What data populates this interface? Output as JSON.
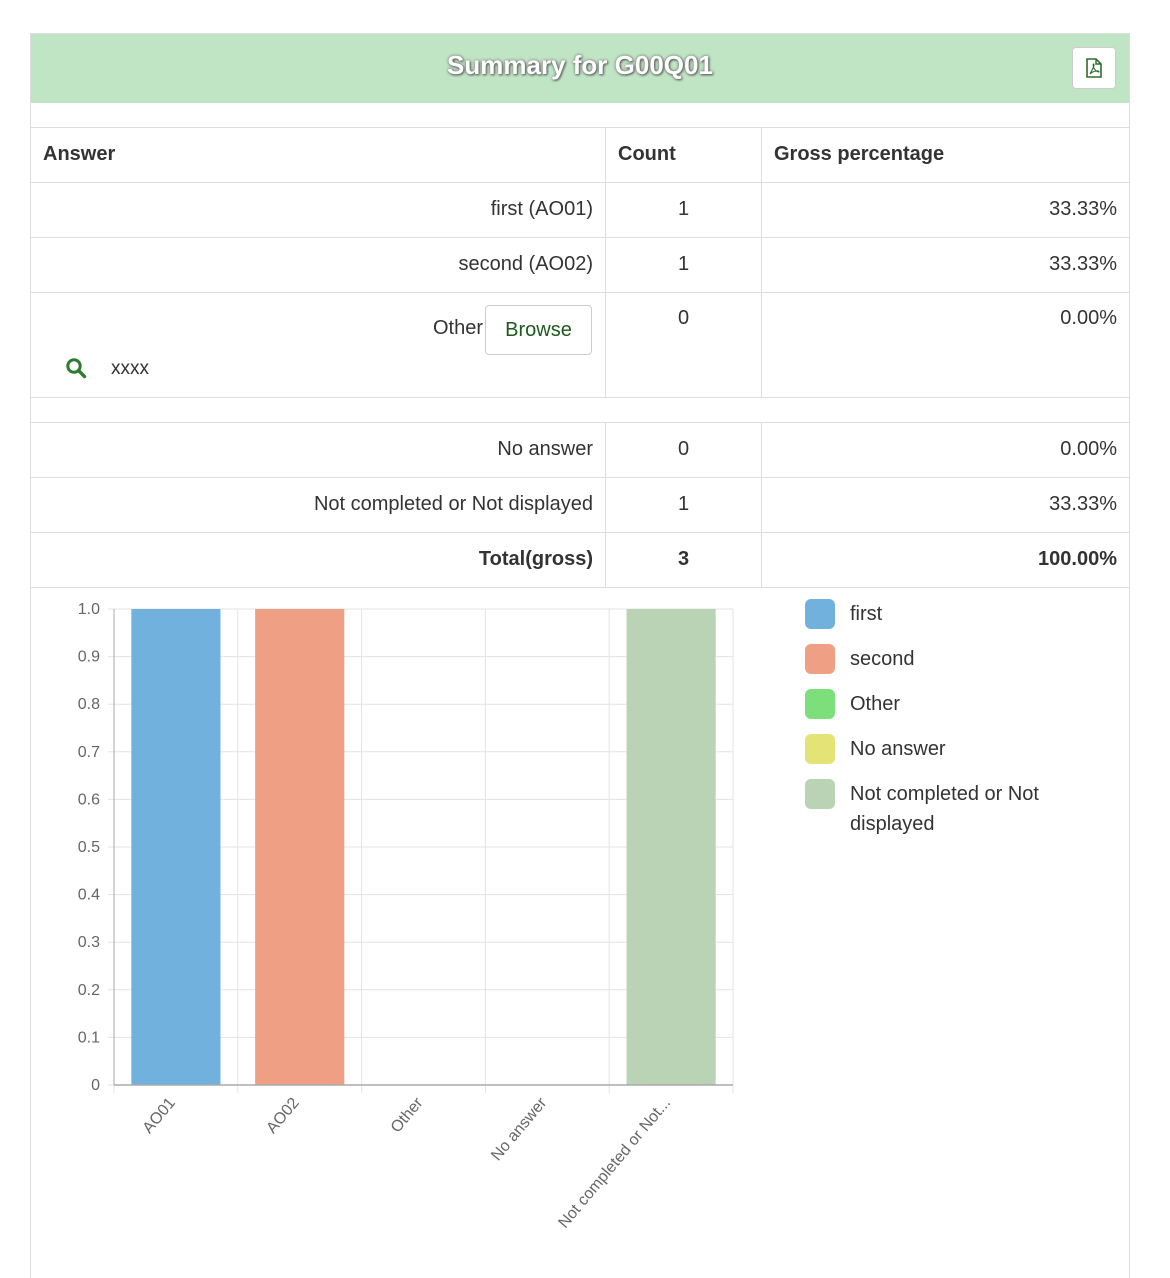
{
  "header": {
    "title": "Summary for G00Q01",
    "export_icon": "pdf-file-icon"
  },
  "table": {
    "columns": [
      "Answer",
      "Count",
      "Gross percentage"
    ],
    "rows": [
      {
        "answer": "first (AO01)",
        "count": "1",
        "percent": "33.33%"
      },
      {
        "answer": "second (AO02)",
        "count": "1",
        "percent": "33.33%"
      },
      {
        "answer": "Other",
        "count": "0",
        "percent": "0.00%",
        "browse_label": "Browse",
        "other_text": "xxxx"
      },
      {
        "answer": "No answer",
        "count": "0",
        "percent": "0.00%"
      },
      {
        "answer": "Not completed or Not displayed",
        "count": "1",
        "percent": "33.33%"
      },
      {
        "answer": "Total(gross)",
        "count": "3",
        "percent": "100.00%"
      }
    ]
  },
  "chart_data": {
    "type": "bar",
    "categories": [
      "AO01",
      "AO02",
      "Other",
      "No answer",
      "Not completed or Not..."
    ],
    "values": [
      1,
      1,
      0,
      0,
      1
    ],
    "ylim": [
      0,
      1
    ],
    "yticks": [
      "0",
      "0.1",
      "0.2",
      "0.3",
      "0.4",
      "0.5",
      "0.6",
      "0.7",
      "0.8",
      "0.9",
      "1.0"
    ],
    "legend": [
      {
        "label": "first",
        "color": "#70b1de"
      },
      {
        "label": "second",
        "color": "#ef9f83"
      },
      {
        "label": "Other",
        "color": "#7ddf7a"
      },
      {
        "label": "No answer",
        "color": "#e3e475"
      },
      {
        "label": "Not completed or Not displayed",
        "color": "#b9d3b4"
      }
    ],
    "legend_position": "right"
  }
}
